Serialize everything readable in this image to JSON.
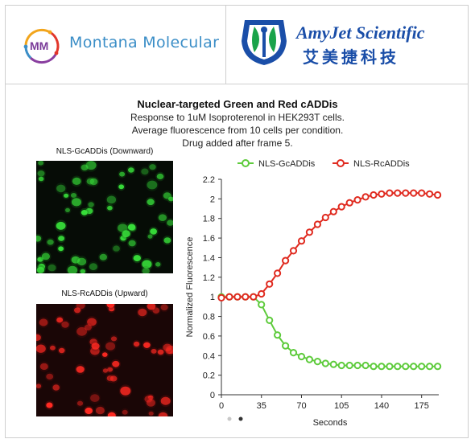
{
  "logos": {
    "left": {
      "initials": "MM",
      "name": "Montana Molecular"
    },
    "right": {
      "name": "AmyJet Scientific",
      "chinese": "艾美捷科技"
    }
  },
  "figure": {
    "title": "Nuclear-targeted Green and Red cADDis",
    "subtitle": "Response to 1uM Isoproterenol in HEK293T cells. Average fluorescence from 10 cells per condition. Drug added after frame 5.",
    "green_image_label": "NLS-GcADDis (Downward)",
    "red_image_label": "NLS-RcADDis (Upward)"
  },
  "colors": {
    "green_series": "#5ecb3c",
    "red_series": "#e02b20",
    "brand_blue": "#3b8ec7",
    "amyjet_blue": "#1a4ea8",
    "amyjet_green": "#1aa34a"
  },
  "chart_data": {
    "type": "line",
    "title": "",
    "xlabel": "Seconds",
    "ylabel": "Normalized Fluorescence",
    "xlim": [
      0,
      190
    ],
    "ylim": [
      0,
      2.2
    ],
    "xticks": [
      "0",
      "35",
      "70",
      "105",
      "140",
      "175"
    ],
    "yticks": [
      "0",
      "0.2",
      "0.4",
      "0.6",
      "0.8",
      "1",
      "1.2",
      "1.4",
      "1.6",
      "1.8",
      "2",
      "2.2"
    ],
    "grid": false,
    "legend_position": "top",
    "x": [
      0,
      7,
      14,
      21,
      28,
      35,
      42,
      49,
      56,
      63,
      70,
      77,
      84,
      91,
      98,
      105,
      112,
      119,
      126,
      133,
      140,
      147,
      154,
      161,
      168,
      175,
      182,
      189
    ],
    "series": [
      {
        "name": "NLS-GcADDis",
        "marker": "open-circle",
        "values": [
          1.0,
          1.0,
          1.0,
          1.0,
          1.0,
          0.92,
          0.76,
          0.61,
          0.5,
          0.43,
          0.39,
          0.36,
          0.34,
          0.32,
          0.31,
          0.3,
          0.3,
          0.3,
          0.3,
          0.29,
          0.29,
          0.29,
          0.29,
          0.29,
          0.29,
          0.29,
          0.29,
          0.29
        ]
      },
      {
        "name": "NLS-RcADDis",
        "marker": "open-circle",
        "values": [
          0.99,
          1.0,
          1.0,
          1.0,
          1.0,
          1.03,
          1.13,
          1.24,
          1.37,
          1.47,
          1.57,
          1.66,
          1.74,
          1.81,
          1.87,
          1.92,
          1.96,
          1.99,
          2.02,
          2.04,
          2.05,
          2.06,
          2.06,
          2.06,
          2.06,
          2.06,
          2.05,
          2.04
        ]
      }
    ]
  }
}
